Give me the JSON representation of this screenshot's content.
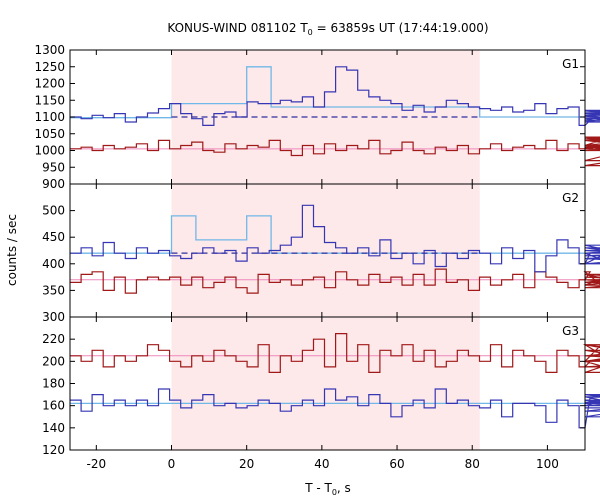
{
  "chart_data": {
    "type": "line",
    "title": "KONUS-WIND 081102 T",
    "title_sub": "0",
    "title_rest": " = 63859s UT (17:44:19.000)",
    "xlabel": "T - T",
    "xlabel_sub": "0",
    "xlabel_rest": ", s",
    "ylabel": "counts / sec",
    "xlim": [
      -27,
      110
    ],
    "x_ticks": [
      -20,
      0,
      20,
      40,
      60,
      80,
      100
    ],
    "highlight_interval": [
      0,
      82
    ],
    "colors": {
      "blue": "#3636b4",
      "red": "#a01818",
      "light_blue": "#70b8e8",
      "dashed_blue": "#3030a0",
      "pink": "#ee88bb",
      "highlight": "#fde8ea"
    },
    "panels": [
      {
        "label": "G1",
        "ylim": [
          900,
          1300
        ],
        "y_ticks": [
          900,
          950,
          1000,
          1050,
          1100,
          1150,
          1200,
          1250,
          1300
        ],
        "bin_start": -27,
        "bin_width": 2.944,
        "blue_series": [
          1100,
          1095,
          1105,
          1098,
          1110,
          1085,
          1100,
          1112,
          1125,
          1140,
          1110,
          1095,
          1075,
          1110,
          1115,
          1100,
          1145,
          1140,
          1140,
          1150,
          1145,
          1160,
          1130,
          1175,
          1250,
          1240,
          1180,
          1160,
          1150,
          1140,
          1120,
          1135,
          1115,
          1130,
          1150,
          1140,
          1130,
          1125,
          1120,
          1130,
          1115,
          1120,
          1140,
          1110,
          1125,
          1130,
          1075,
          1090,
          1100,
          1120,
          1110,
          1105,
          1085,
          1120,
          1115,
          1105,
          1120,
          1095,
          1110,
          1110,
          1100,
          1100,
          1085,
          1100,
          1090,
          1100
        ],
        "red_series": [
          1005,
          1010,
          1000,
          1015,
          1005,
          1010,
          1020,
          1000,
          1030,
          1005,
          1015,
          1025,
          1000,
          995,
          1020,
          1005,
          1015,
          1010,
          1030,
          1000,
          985,
          1015,
          990,
          1020,
          1000,
          1015,
          1005,
          1030,
          990,
          1000,
          1025,
          1000,
          990,
          1010,
          1000,
          1015,
          990,
          1005,
          1020,
          1000,
          1010,
          1015,
          1005,
          1030,
          1000,
          1020,
          1005,
          1015,
          1030,
          1040,
          1015,
          1030,
          1010,
          970,
          1030,
          1015,
          955,
          1010,
          1040,
          1010,
          1000,
          1035,
          1000,
          1010,
          1005,
          1000
        ],
        "light_blue_steps": [
          [
            -27,
            1098
          ],
          [
            0,
            1140
          ],
          [
            20,
            1250
          ],
          [
            26.5,
            1130
          ],
          [
            82,
            1100
          ],
          [
            110,
            1100
          ]
        ],
        "dashed_level": 1100,
        "red_fit_level": 1005
      },
      {
        "label": "G2",
        "ylim": [
          300,
          550
        ],
        "y_ticks": [
          300,
          350,
          400,
          450,
          500
        ],
        "bin_start": -27,
        "bin_width": 2.944,
        "blue_series": [
          420,
          430,
          415,
          440,
          420,
          410,
          430,
          420,
          425,
          415,
          410,
          420,
          430,
          420,
          425,
          405,
          430,
          420,
          425,
          435,
          450,
          510,
          470,
          440,
          430,
          420,
          430,
          415,
          445,
          410,
          420,
          400,
          425,
          395,
          420,
          410,
          425,
          420,
          400,
          430,
          410,
          425,
          385,
          415,
          445,
          430,
          400,
          420,
          420,
          400,
          435,
          415,
          420,
          430,
          410,
          400,
          415,
          425,
          410,
          420,
          425,
          415,
          420,
          430,
          415,
          420
        ],
        "red_series": [
          365,
          380,
          385,
          350,
          375,
          345,
          370,
          375,
          370,
          375,
          360,
          375,
          355,
          365,
          375,
          355,
          345,
          380,
          365,
          370,
          360,
          370,
          375,
          355,
          385,
          370,
          360,
          380,
          365,
          375,
          360,
          380,
          360,
          390,
          365,
          370,
          350,
          375,
          360,
          370,
          380,
          355,
          385,
          375,
          365,
          355,
          370,
          385,
          360,
          380,
          365,
          375,
          370,
          360,
          380,
          370,
          355,
          375,
          365,
          380,
          370,
          375,
          365,
          380,
          370,
          375
        ],
        "light_blue_steps": [
          [
            -27,
            420
          ],
          [
            0,
            490
          ],
          [
            6.5,
            445
          ],
          [
            20,
            490
          ],
          [
            26.5,
            420
          ],
          [
            110,
            420
          ]
        ],
        "dashed_level": 420,
        "red_fit_level": 370
      },
      {
        "label": "G3",
        "ylim": [
          120,
          240
        ],
        "y_ticks": [
          120,
          140,
          160,
          180,
          200,
          220
        ],
        "bin_start": -27,
        "bin_width": 2.944,
        "blue_series": [
          165,
          155,
          170,
          160,
          165,
          160,
          165,
          160,
          175,
          165,
          158,
          165,
          170,
          160,
          162,
          158,
          160,
          165,
          162,
          155,
          160,
          165,
          160,
          175,
          165,
          168,
          160,
          170,
          162,
          150,
          160,
          165,
          158,
          175,
          162,
          165,
          160,
          158,
          165,
          150,
          162,
          162,
          160,
          145,
          165,
          160,
          140,
          168,
          165,
          160,
          170,
          165,
          155,
          162,
          170,
          160,
          165,
          150,
          168,
          165,
          160,
          170,
          158,
          160,
          162,
          163
        ],
        "red_series": [
          205,
          200,
          210,
          195,
          205,
          200,
          205,
          215,
          210,
          200,
          195,
          205,
          200,
          210,
          205,
          200,
          195,
          215,
          190,
          205,
          200,
          210,
          220,
          195,
          225,
          200,
          215,
          190,
          210,
          205,
          215,
          200,
          210,
          195,
          200,
          210,
          205,
          200,
          215,
          195,
          210,
          205,
          200,
          190,
          210,
          205,
          195,
          200,
          215,
          200,
          190,
          205,
          210,
          200,
          205,
          200,
          215,
          195,
          200,
          210,
          205,
          200,
          215,
          195,
          205,
          205
        ],
        "light_blue_steps": [
          [
            -27,
            162
          ],
          [
            110,
            162
          ]
        ],
        "pink_level": 205
      }
    ]
  }
}
